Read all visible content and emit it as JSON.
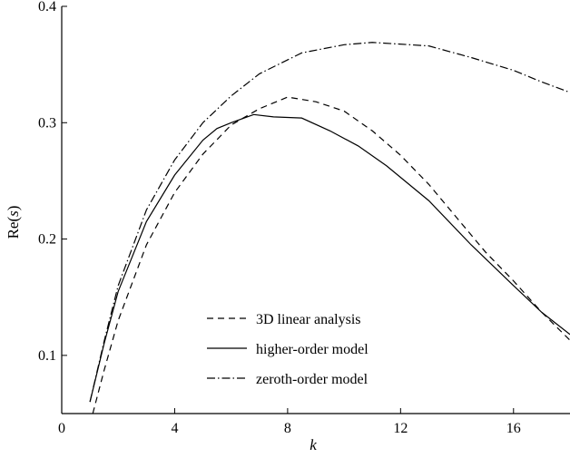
{
  "chart_data": {
    "type": "line",
    "xlabel": "k",
    "ylabel_prefix": "Re(",
    "ylabel_var": "s",
    "ylabel_suffix": ")",
    "xlim": [
      0,
      18
    ],
    "ylim": [
      0.05,
      0.4
    ],
    "xticks": [
      0,
      4,
      8,
      12,
      16
    ],
    "yticks": [
      0.1,
      0.2,
      0.3,
      0.4
    ],
    "grid": false,
    "legend_position": "bottom-center",
    "series": [
      {
        "name": "3D linear analysis",
        "style": "dashed",
        "points": [
          [
            1.1,
            0.05
          ],
          [
            1.5,
            0.087
          ],
          [
            2.0,
            0.13
          ],
          [
            3.0,
            0.195
          ],
          [
            4.0,
            0.24
          ],
          [
            5.0,
            0.273
          ],
          [
            6.0,
            0.298
          ],
          [
            7.0,
            0.312
          ],
          [
            8.0,
            0.322
          ],
          [
            9.0,
            0.318
          ],
          [
            10.0,
            0.31
          ],
          [
            11.0,
            0.293
          ],
          [
            12.0,
            0.272
          ],
          [
            13.0,
            0.247
          ],
          [
            14.0,
            0.218
          ],
          [
            15.0,
            0.189
          ],
          [
            16.0,
            0.164
          ],
          [
            17.0,
            0.137
          ],
          [
            18.0,
            0.113
          ]
        ]
      },
      {
        "name": "higher-order model",
        "style": "solid",
        "points": [
          [
            1.0,
            0.06
          ],
          [
            1.5,
            0.11
          ],
          [
            2.0,
            0.155
          ],
          [
            3.0,
            0.215
          ],
          [
            4.0,
            0.255
          ],
          [
            5.0,
            0.285
          ],
          [
            5.5,
            0.295
          ],
          [
            6.0,
            0.3
          ],
          [
            6.8,
            0.307
          ],
          [
            7.5,
            0.305
          ],
          [
            8.5,
            0.304
          ],
          [
            9.5,
            0.293
          ],
          [
            10.5,
            0.28
          ],
          [
            11.5,
            0.263
          ],
          [
            13.0,
            0.233
          ],
          [
            14.5,
            0.195
          ],
          [
            16.0,
            0.16
          ],
          [
            17.0,
            0.137
          ],
          [
            18.0,
            0.118
          ]
        ]
      },
      {
        "name": "zeroth-order model",
        "style": "dash-dot",
        "points": [
          [
            1.0,
            0.06
          ],
          [
            1.5,
            0.112
          ],
          [
            2.0,
            0.16
          ],
          [
            3.0,
            0.225
          ],
          [
            4.0,
            0.268
          ],
          [
            5.0,
            0.3
          ],
          [
            6.0,
            0.323
          ],
          [
            7.0,
            0.342
          ],
          [
            8.5,
            0.36
          ],
          [
            10.0,
            0.367
          ],
          [
            11.0,
            0.369
          ],
          [
            13.0,
            0.366
          ],
          [
            14.5,
            0.356
          ],
          [
            16.0,
            0.345
          ],
          [
            17.0,
            0.335
          ],
          [
            18.0,
            0.326
          ]
        ]
      }
    ]
  }
}
